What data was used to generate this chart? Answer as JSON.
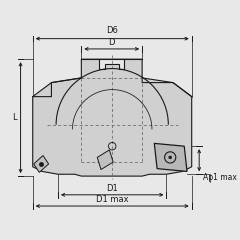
{
  "bg_color": "#e8e8e8",
  "line_color": "#1a1a1a",
  "body_fill": "#d0d0d0",
  "body_fill_light": "#dadada",
  "dashed_color": "#666666",
  "insert_fill": "#c0c0c0",
  "insert_fill2": "#b8b8b8",
  "figsize": [
    2.4,
    2.4
  ],
  "dpi": 100,
  "font_size": 6.0,
  "labels": {
    "D6": "D6",
    "D": "D",
    "D1": "D1",
    "D1max": "D1 max",
    "L": "L",
    "Ap1max": "Ap1 max"
  }
}
